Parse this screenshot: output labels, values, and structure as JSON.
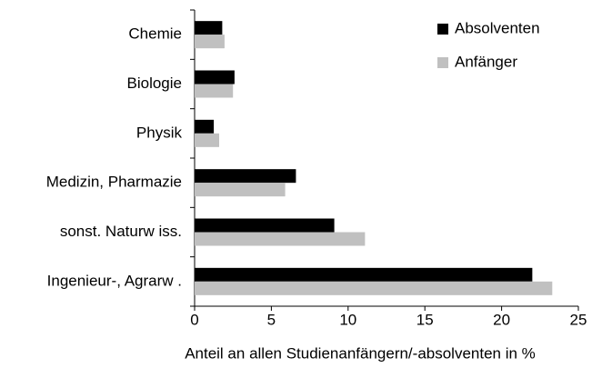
{
  "chart_data": {
    "type": "hbar",
    "categories": [
      "Chemie",
      "Biologie",
      "Physik",
      "Medizin, Pharmazie",
      "sonst. Naturw iss.",
      "Ingenieur-, Agrarw ."
    ],
    "series": [
      {
        "name": "Absolventen",
        "color": "#000000",
        "values": [
          1.8,
          2.6,
          1.25,
          6.6,
          9.1,
          22.0
        ]
      },
      {
        "name": "Anfänger",
        "color": "#c0c0c0",
        "values": [
          1.95,
          2.5,
          1.6,
          5.9,
          11.1,
          23.3
        ]
      }
    ],
    "xlabel": "Anteil an allen Studienanfängern/-absolventen in %",
    "xlim": [
      0,
      25
    ],
    "xticks": [
      0,
      5,
      10,
      15,
      20,
      25
    ],
    "grid": false,
    "legend": "top-right"
  }
}
